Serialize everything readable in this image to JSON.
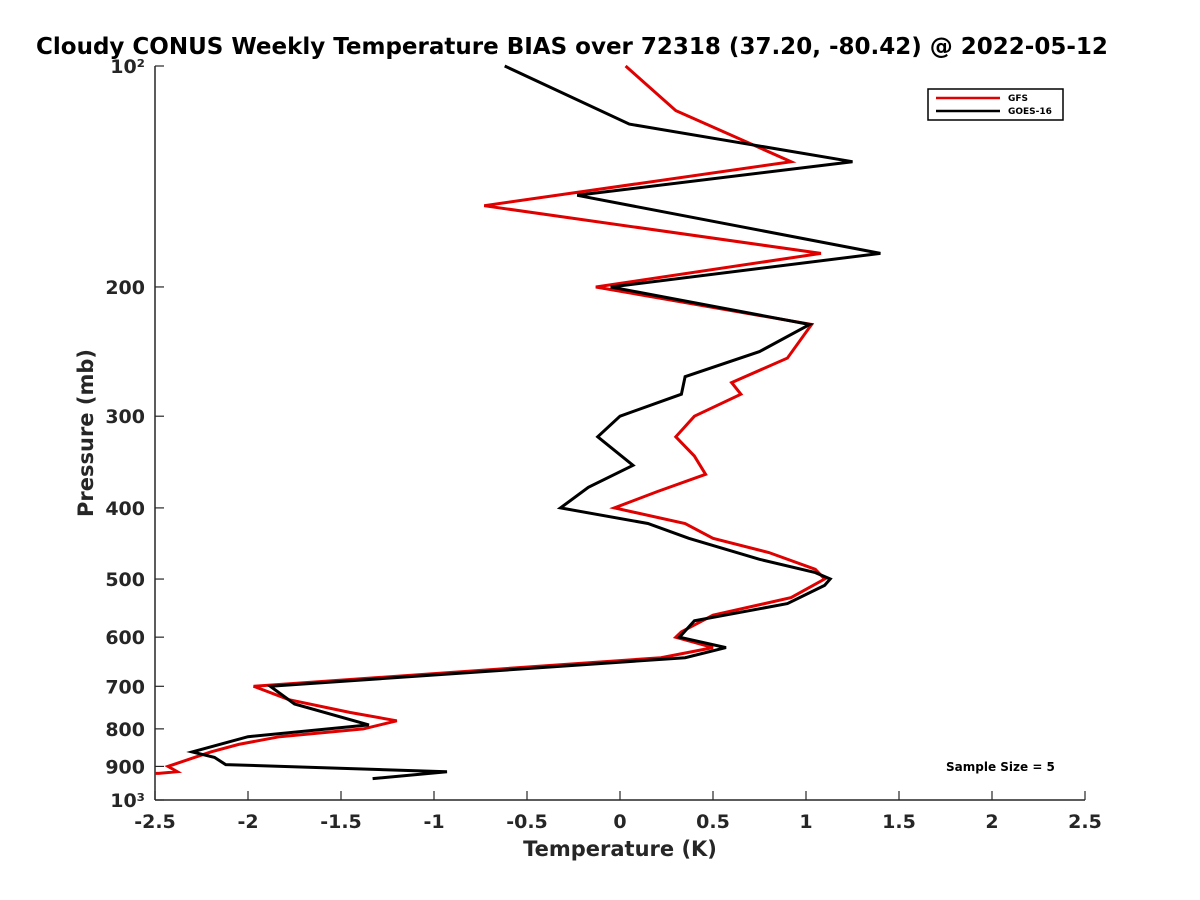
{
  "chart_data": {
    "type": "line",
    "title": "Cloudy CONUS Weekly Temperature BIAS over 72318 (37.20, -80.42) @ 2022-05-12",
    "xlabel": "Temperature (K)",
    "ylabel": "Pressure (mb)",
    "xlim": [
      -2.5,
      2.5
    ],
    "ylim": [
      100,
      1000
    ],
    "yscale": "log",
    "y_reversed": true,
    "grid": false,
    "legend_position": "top-right",
    "x_ticks": [
      -2.5,
      -2,
      -1.5,
      -1,
      -0.5,
      0,
      0.5,
      1,
      1.5,
      2,
      2.5
    ],
    "x_tick_labels": [
      "-2.5",
      "-2",
      "-1.5",
      "-1",
      "-0.5",
      "0",
      "0.5",
      "1",
      "1.5",
      "2",
      "2.5"
    ],
    "y_ticks": [
      100,
      200,
      300,
      400,
      500,
      600,
      700,
      800,
      900,
      1000
    ],
    "y_tick_labels": [
      "10²",
      "200",
      "300",
      "400",
      "500",
      "600",
      "700",
      "800",
      "900",
      "10³"
    ],
    "annotation": "Sample Size = 5",
    "series": [
      {
        "name": "GFS",
        "color": "#e00000",
        "points": [
          [
            0.03,
            100
          ],
          [
            0.3,
            115
          ],
          [
            0.92,
            135
          ],
          [
            -0.73,
            155
          ],
          [
            1.08,
            180
          ],
          [
            -0.13,
            200
          ],
          [
            1.03,
            225
          ],
          [
            0.9,
            250
          ],
          [
            0.6,
            270
          ],
          [
            0.65,
            280
          ],
          [
            0.4,
            300
          ],
          [
            0.3,
            320
          ],
          [
            0.4,
            340
          ],
          [
            0.46,
            360
          ],
          [
            0.2,
            380
          ],
          [
            -0.03,
            400
          ],
          [
            0.35,
            420
          ],
          [
            0.5,
            440
          ],
          [
            0.8,
            460
          ],
          [
            1.05,
            485
          ],
          [
            1.1,
            500
          ],
          [
            0.92,
            530
          ],
          [
            0.5,
            560
          ],
          [
            0.33,
            590
          ],
          [
            0.3,
            600
          ],
          [
            0.5,
            620
          ],
          [
            0.22,
            640
          ],
          [
            -1.97,
            700
          ],
          [
            -1.78,
            730
          ],
          [
            -1.45,
            760
          ],
          [
            -1.2,
            780
          ],
          [
            -1.38,
            800
          ],
          [
            -1.83,
            820
          ],
          [
            -2.05,
            840
          ],
          [
            -2.2,
            860
          ],
          [
            -2.43,
            900
          ],
          [
            -2.38,
            915
          ],
          [
            -2.48,
            920
          ],
          [
            -2.5,
            920
          ]
        ]
      },
      {
        "name": "GOES-16",
        "color": "#000000",
        "points": [
          [
            -0.62,
            100
          ],
          [
            0.05,
            120
          ],
          [
            1.25,
            135
          ],
          [
            -0.23,
            150
          ],
          [
            1.4,
            180
          ],
          [
            -0.05,
            200
          ],
          [
            1.02,
            225
          ],
          [
            0.75,
            245
          ],
          [
            0.35,
            265
          ],
          [
            0.33,
            280
          ],
          [
            0.0,
            300
          ],
          [
            -0.12,
            320
          ],
          [
            0.07,
            350
          ],
          [
            -0.17,
            375
          ],
          [
            -0.32,
            400
          ],
          [
            0.15,
            420
          ],
          [
            0.37,
            440
          ],
          [
            0.75,
            470
          ],
          [
            1.05,
            490
          ],
          [
            1.13,
            500
          ],
          [
            1.1,
            510
          ],
          [
            0.9,
            540
          ],
          [
            0.4,
            570
          ],
          [
            0.32,
            600
          ],
          [
            0.57,
            620
          ],
          [
            0.35,
            640
          ],
          [
            -1.88,
            700
          ],
          [
            -1.75,
            740
          ],
          [
            -1.35,
            790
          ],
          [
            -2.0,
            820
          ],
          [
            -2.3,
            860
          ],
          [
            -2.18,
            875
          ],
          [
            -2.12,
            895
          ],
          [
            -0.93,
            915
          ],
          [
            -1.33,
            935
          ]
        ]
      }
    ]
  }
}
